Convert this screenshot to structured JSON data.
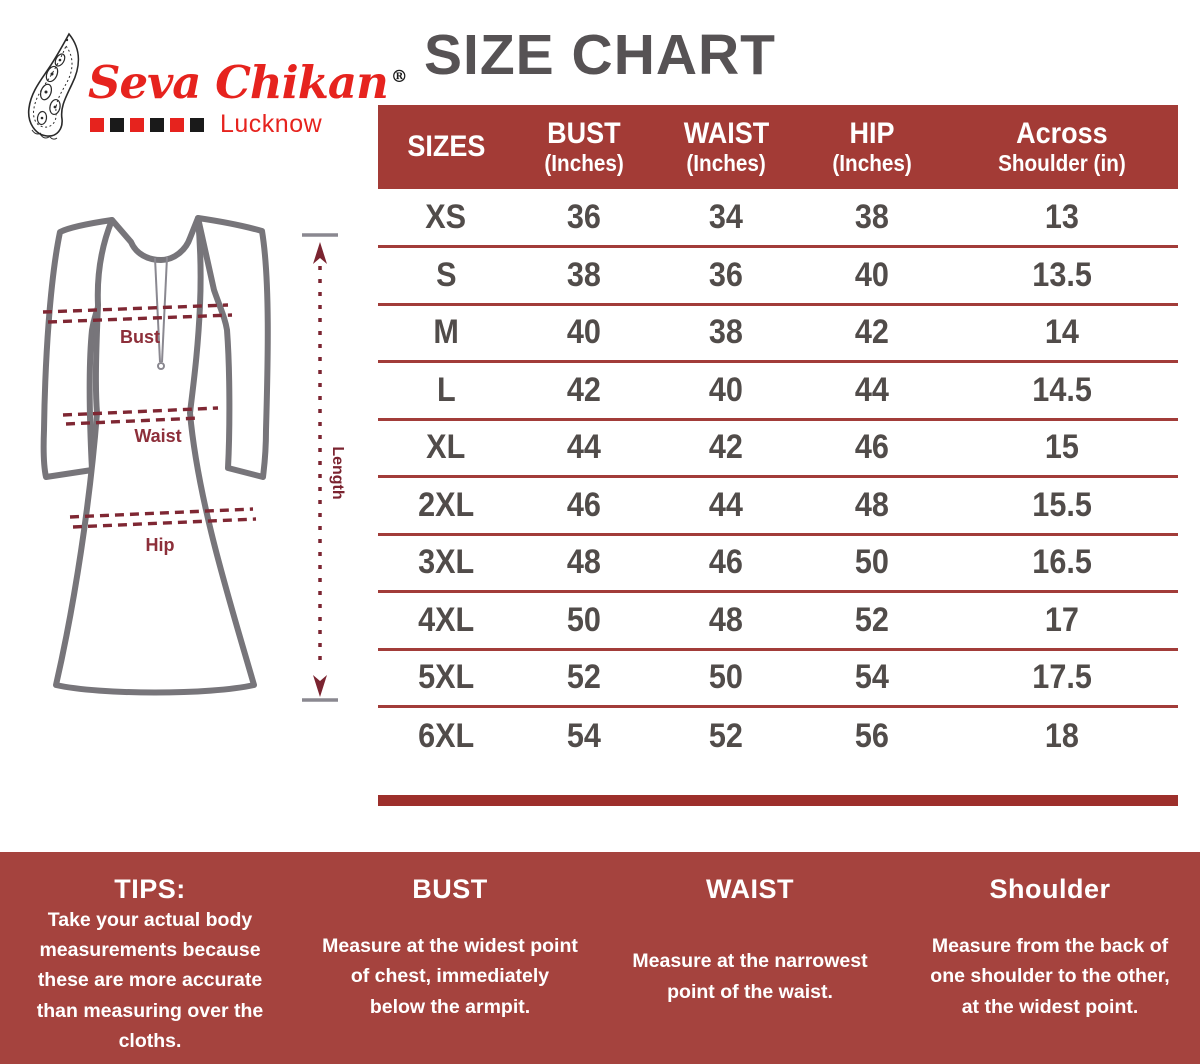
{
  "brand": {
    "name": "Seva Chikan",
    "registered_mark": "®",
    "city": "Lucknow",
    "square_colors": [
      "#e6231e",
      "#1a1a1a",
      "#e6231e",
      "#1a1a1a",
      "#e6231e",
      "#1a1a1a"
    ]
  },
  "page": {
    "title": "SIZE CHART"
  },
  "figure": {
    "labels": {
      "bust": "Bust",
      "waist": "Waist",
      "hip": "Hip",
      "length": "Length"
    }
  },
  "chart_data": {
    "type": "table",
    "title": "SIZE CHART",
    "columns": [
      {
        "label": "SIZES",
        "sub": ""
      },
      {
        "label": "BUST",
        "sub": "(Inches)"
      },
      {
        "label": "WAIST",
        "sub": "(Inches)"
      },
      {
        "label": "HIP",
        "sub": "(Inches)"
      },
      {
        "label": "Across",
        "sub": "Shoulder (in)"
      }
    ],
    "rows": [
      [
        "XS",
        "36",
        "34",
        "38",
        "13"
      ],
      [
        "S",
        "38",
        "36",
        "40",
        "13.5"
      ],
      [
        "M",
        "40",
        "38",
        "42",
        "14"
      ],
      [
        "L",
        "42",
        "40",
        "44",
        "14.5"
      ],
      [
        "XL",
        "44",
        "42",
        "46",
        "15"
      ],
      [
        "2XL",
        "46",
        "44",
        "48",
        "15.5"
      ],
      [
        "3XL",
        "48",
        "46",
        "50",
        "16.5"
      ],
      [
        "4XL",
        "50",
        "48",
        "52",
        "17"
      ],
      [
        "5XL",
        "52",
        "50",
        "54",
        "17.5"
      ],
      [
        "6XL",
        "54",
        "52",
        "56",
        "18"
      ]
    ]
  },
  "tips": {
    "sections": [
      {
        "heading": "TIPS:",
        "body": "Take your actual body measurements because these are more accurate than measuring over the cloths."
      },
      {
        "heading": "BUST",
        "body": "Measure at the widest point of chest, immediately below the armpit."
      },
      {
        "heading": "WAIST",
        "body": "Measure at the narrowest point of the waist."
      },
      {
        "heading": "Shoulder",
        "body": "Measure from the back of one shoulder to the other, at the widest point."
      }
    ]
  },
  "colors": {
    "brand_red": "#e6231e",
    "table_header_red": "#a33b36",
    "row_line_red": "#a23c39",
    "bottom_bar_red": "#9d2f2b",
    "banner_red": "#a5433e",
    "table_text": "#514c4a",
    "title_gray": "#565254",
    "measure_maroon": "#7f2733",
    "garment_gray": "#77757a"
  }
}
